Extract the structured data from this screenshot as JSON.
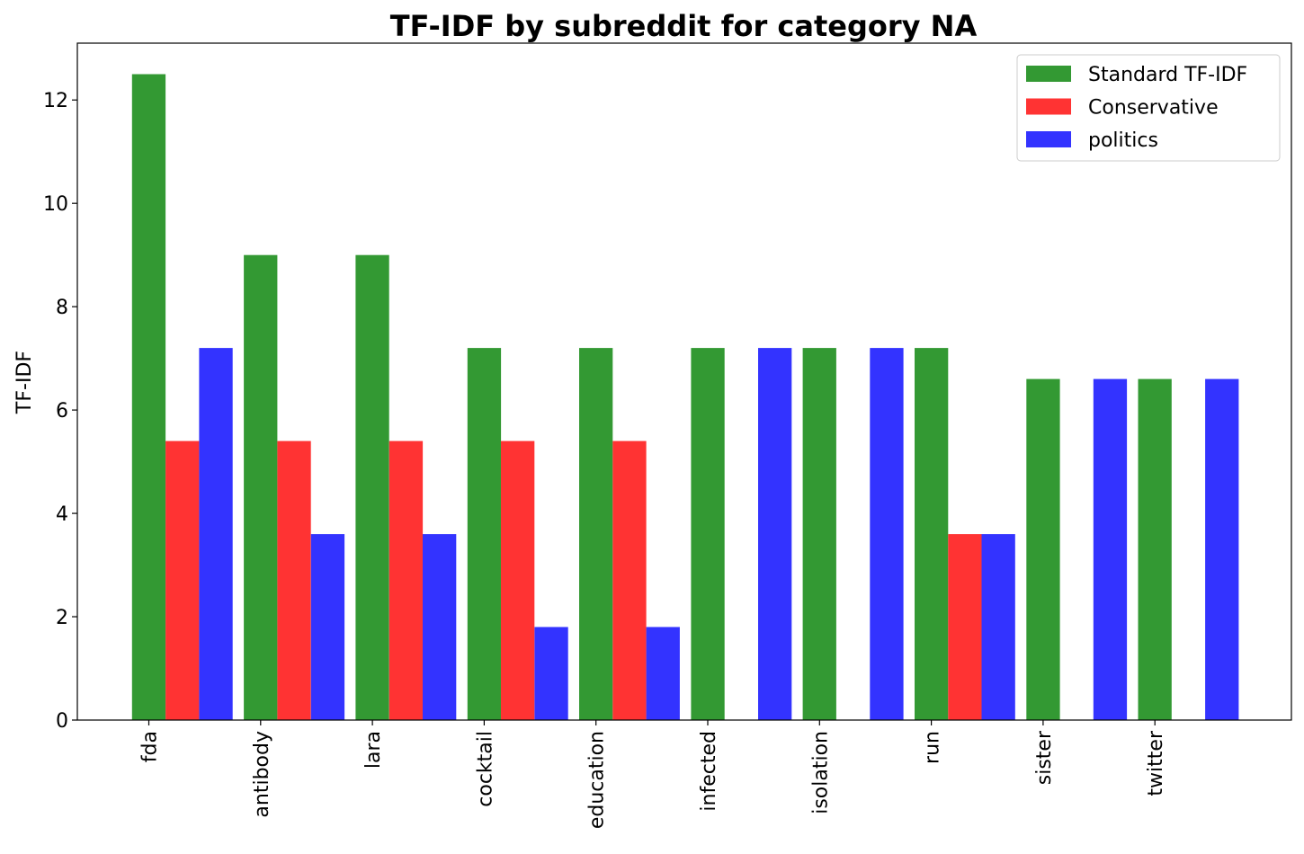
{
  "chart_data": {
    "type": "bar",
    "title": "TF-IDF by subreddit for category NA",
    "xlabel": "",
    "ylabel": "TF-IDF",
    "ylim": [
      0,
      13.1
    ],
    "yticks": [
      "0",
      "2",
      "4",
      "6",
      "8",
      "10",
      "12"
    ],
    "categories": [
      "fda",
      "antibody",
      "lara",
      "cocktail",
      "education",
      "infected",
      "isolation",
      "run",
      "sister",
      "twitter"
    ],
    "series": [
      {
        "name": "Standard TF-IDF",
        "color": "#339933",
        "values": [
          12.5,
          9.0,
          9.0,
          7.2,
          7.2,
          7.2,
          7.2,
          7.2,
          6.6,
          6.6
        ]
      },
      {
        "name": "Conservative",
        "color": "#ff3333",
        "values": [
          5.4,
          5.4,
          5.4,
          5.4,
          5.4,
          0,
          0,
          3.6,
          0,
          0
        ]
      },
      {
        "name": "politics",
        "color": "#3333ff",
        "values": [
          7.2,
          3.6,
          3.6,
          1.8,
          1.8,
          7.2,
          7.2,
          3.6,
          6.6,
          6.6
        ]
      }
    ],
    "legend_position": "top-right",
    "grid": false
  }
}
